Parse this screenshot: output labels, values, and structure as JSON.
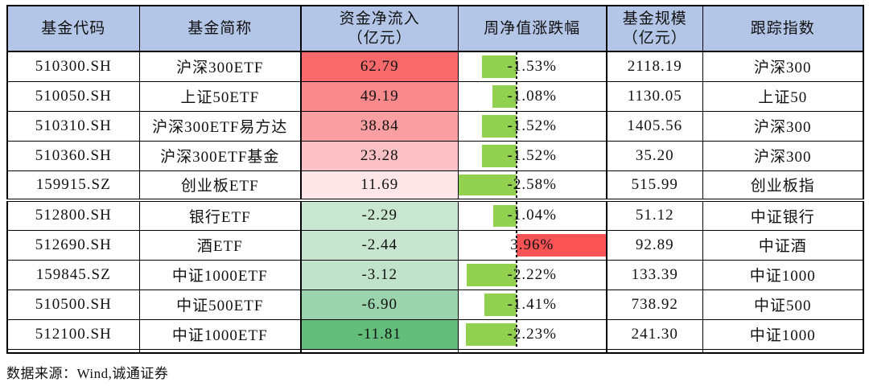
{
  "source_note": "数据来源：Wind,诚通证券",
  "colors": {
    "header_bg": "#B4C6E7",
    "border": "#000000",
    "text": "#111111",
    "bar_negative": "#92D050",
    "bar_positive": "#F95355",
    "inflow_scale_max_red": "#F8696B",
    "inflow_scale_min_green": "#63BE7B"
  },
  "headers": [
    {
      "line1": "基金代码",
      "line2": ""
    },
    {
      "line1": "基金简称",
      "line2": ""
    },
    {
      "line1": "资金净流入",
      "line2": "（亿元）"
    },
    {
      "line1": "周净值涨跌幅",
      "line2": ""
    },
    {
      "line1": "基金规模",
      "line2": "（亿元）"
    },
    {
      "line1": "跟踪指数",
      "line2": ""
    }
  ],
  "chart_data": {
    "type": "table",
    "columns": [
      "基金代码",
      "基金简称",
      "资金净流入（亿元）",
      "周净值涨跌幅",
      "基金规模（亿元）",
      "跟踪指数"
    ],
    "rows": [
      {
        "code": "510300.SH",
        "name": "沪深300ETF",
        "inflow": 62.79,
        "inflow_bg": "#F8696B",
        "weekly_change_pct": -1.53,
        "aum": 2118.19,
        "index": "沪深300"
      },
      {
        "code": "510050.SH",
        "name": "上证50ETF",
        "inflow": 49.19,
        "inflow_bg": "#F9898B",
        "weekly_change_pct": -1.08,
        "aum": 1130.05,
        "index": "上证50"
      },
      {
        "code": "510310.SH",
        "name": "沪深300ETF易方达",
        "inflow": 38.84,
        "inflow_bg": "#FA9FA1",
        "weekly_change_pct": -1.52,
        "aum": 1405.56,
        "index": "沪深300"
      },
      {
        "code": "510360.SH",
        "name": "沪深300ETF基金",
        "inflow": 23.28,
        "inflow_bg": "#FBC1C4",
        "weekly_change_pct": -1.52,
        "aum": 35.2,
        "index": "沪深300"
      },
      {
        "code": "159915.SZ",
        "name": "创业板ETF",
        "inflow": 11.69,
        "inflow_bg": "#FCE6E8",
        "weekly_change_pct": -2.58,
        "aum": 515.99,
        "index": "创业板指"
      },
      {
        "code": "512800.SH",
        "name": "银行ETF",
        "inflow": -2.29,
        "inflow_bg": "#C8E6D0",
        "weekly_change_pct": -1.04,
        "aum": 51.12,
        "index": "中证银行"
      },
      {
        "code": "512690.SH",
        "name": "酒ETF",
        "inflow": -2.44,
        "inflow_bg": "#C7E5CF",
        "weekly_change_pct": 3.96,
        "aum": 92.89,
        "index": "中证酒"
      },
      {
        "code": "159845.SZ",
        "name": "中证1000ETF",
        "inflow": -3.12,
        "inflow_bg": "#C2E3CB",
        "weekly_change_pct": -2.22,
        "aum": 133.39,
        "index": "中证1000"
      },
      {
        "code": "510500.SH",
        "name": "中证500ETF",
        "inflow": -6.9,
        "inflow_bg": "#9AD3AC",
        "weekly_change_pct": -1.41,
        "aum": 738.92,
        "index": "中证500"
      },
      {
        "code": "512100.SH",
        "name": "中证1000ETF",
        "inflow": -11.81,
        "inflow_bg": "#63BE7B",
        "weekly_change_pct": -2.23,
        "aum": 241.3,
        "index": "中证1000"
      }
    ],
    "databar": {
      "axis_min": -2.58,
      "axis_max": 3.96,
      "negative_color": "#92D050",
      "positive_color": "#F95355"
    },
    "group_separator_before_row_index": 5,
    "layout_hints": {
      "inflow_color_scale": "red-white-green",
      "grid": "on"
    }
  }
}
